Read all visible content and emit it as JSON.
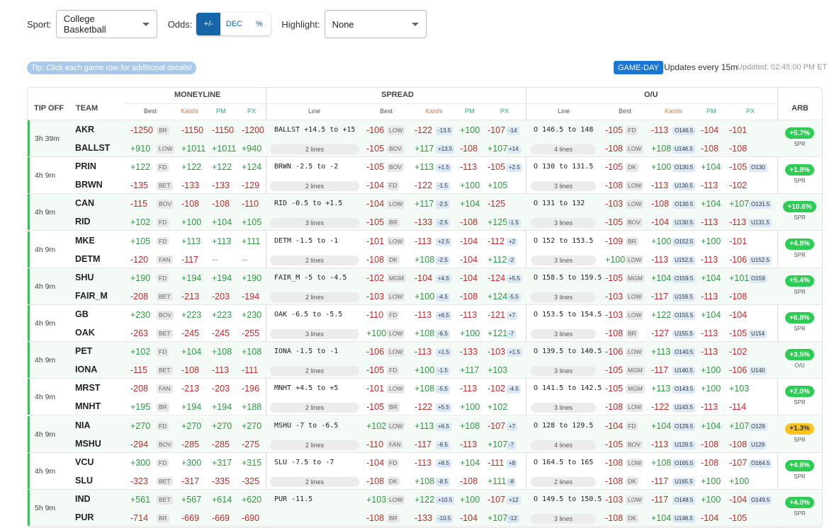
{
  "controls": {
    "sport_label": "Sport:",
    "sport_value": "College Basketball",
    "odds_label": "Odds:",
    "odds_options": [
      "+/-",
      "DEC",
      "%"
    ],
    "highlight_label": "Highlight:",
    "highlight_value": "None"
  },
  "tip": "Tip: Click each game row for additional details!",
  "status": {
    "badge": "GAME-DAY",
    "updates": "Updates every 15m",
    "updated": "Updated: 02:45:00 PM ET"
  },
  "colors": {
    "accent": "#1565a8",
    "positive": "#2a9a3e",
    "negative": "#c62828",
    "arb_green": "#2ecc55",
    "arb_yellow": "#f8c421"
  },
  "header": {
    "tipoff": "TIP OFF",
    "team": "TEAM",
    "moneyline": "MONEYLINE",
    "spread": "SPREAD",
    "ou": "O/U",
    "arb": "ARB",
    "ml_sub": [
      "Best",
      "Kalshi",
      "PM",
      "PX"
    ],
    "spread_sub": [
      "Line",
      "Best",
      "Kalshi",
      "PM",
      "PX"
    ],
    "ou_sub": [
      "Line",
      "Best",
      "Kalshi",
      "PM",
      "PX"
    ]
  },
  "games": [
    {
      "time": "3h 39m",
      "arb": "+5.7%",
      "arb_type": "SPR",
      "arb_color": "green",
      "rows": [
        {
          "team": "AKR",
          "ml": [
            "-1250",
            "BR",
            "-1150",
            "-1150",
            "-1200"
          ],
          "sp_line": "BALLST +14.5 to +15",
          "sp": [
            "-106",
            "LOW",
            "-122",
            "-13.5",
            "+100",
            "-107",
            "-14"
          ],
          "ou_line": "O 146.5 to 148",
          "ou": [
            "-105",
            "FD",
            "-113",
            "O146.5",
            "-104",
            "-101",
            ""
          ]
        },
        {
          "team": "BALLST",
          "ml": [
            "+910",
            "LOW",
            "+1011",
            "+1011",
            "+940"
          ],
          "sp_line": "2 lines",
          "sp": [
            "-105",
            "BOV",
            "+117",
            "+13.5",
            "-108",
            "+107",
            "+14"
          ],
          "ou_line": "4 lines",
          "ou": [
            "-108",
            "LOW",
            "+108",
            "U146.5",
            "-108",
            "-108",
            ""
          ]
        }
      ]
    },
    {
      "time": "4h 9m",
      "arb": "+1.8%",
      "arb_type": "SPR",
      "arb_color": "green",
      "rows": [
        {
          "team": "PRIN",
          "ml": [
            "+122",
            "FD",
            "+122",
            "+122",
            "+124"
          ],
          "sp_line": "BRWN -2.5 to -2",
          "sp": [
            "-105",
            "BOV",
            "+113",
            "+1.5",
            "-113",
            "-105",
            "+2.5"
          ],
          "ou_line": "O 130 to 131.5",
          "ou": [
            "-105",
            "DK",
            "+100",
            "O130.5",
            "+104",
            "-105",
            "O130"
          ]
        },
        {
          "team": "BRWN",
          "ml": [
            "-135",
            "BET",
            "-133",
            "-133",
            "-129"
          ],
          "sp_line": "2 lines",
          "sp": [
            "-104",
            "FD",
            "-122",
            "-1.5",
            "+100",
            "+105",
            ""
          ],
          "ou_line": "3 lines",
          "ou": [
            "-108",
            "LOW",
            "-113",
            "U130.5",
            "-113",
            "-102",
            ""
          ]
        }
      ]
    },
    {
      "time": "4h 9m",
      "arb": "+10.6%",
      "arb_type": "SPR",
      "arb_color": "green",
      "rows": [
        {
          "team": "CAN",
          "ml": [
            "-115",
            "BOV",
            "-108",
            "-108",
            "-110"
          ],
          "sp_line": "RID -0.5 to +1.5",
          "sp": [
            "-104",
            "LOW",
            "+117",
            "-2.5",
            "+104",
            "-125",
            ""
          ],
          "ou_line": "O 131 to 132",
          "ou": [
            "-103",
            "LOW",
            "-108",
            "O130.5",
            "+104",
            "+107",
            "O131.5"
          ]
        },
        {
          "team": "RID",
          "ml": [
            "+102",
            "FD",
            "+100",
            "+104",
            "+105"
          ],
          "sp_line": "3 lines",
          "sp": [
            "-105",
            "BR",
            "-133",
            "-2.5",
            "-108",
            "+125",
            "-1.5"
          ],
          "ou_line": "3 lines",
          "ou": [
            "-105",
            "BOV",
            "-104",
            "U130.5",
            "-113",
            "-113",
            "U131.5"
          ]
        }
      ]
    },
    {
      "time": "4h 9m",
      "arb": "+4.8%",
      "arb_type": "SPR",
      "arb_color": "green",
      "rows": [
        {
          "team": "MKE",
          "ml": [
            "+105",
            "FD",
            "+113",
            "+113",
            "+111"
          ],
          "sp_line": "DETM -1.5 to -1",
          "sp": [
            "-101",
            "LOW",
            "-113",
            "+2.5",
            "-104",
            "-112",
            "+2"
          ],
          "ou_line": "O 152 to 153.5",
          "ou": [
            "-109",
            "BR",
            "+100",
            "O152.5",
            "+100",
            "-101",
            ""
          ]
        },
        {
          "team": "DETM",
          "ml": [
            "-120",
            "FAN",
            "-117",
            "--",
            "--"
          ],
          "sp_line": "2 lines",
          "sp": [
            "-108",
            "DK",
            "+108",
            "-2.5",
            "-104",
            "+112",
            "-2"
          ],
          "ou_line": "3 lines",
          "ou": [
            "+100",
            "LOW",
            "-113",
            "U152.5",
            "-113",
            "-106",
            "U152.5"
          ]
        }
      ]
    },
    {
      "time": "4h 9m",
      "arb": "+5.4%",
      "arb_type": "SPR",
      "arb_color": "green",
      "rows": [
        {
          "team": "SHU",
          "ml": [
            "+190",
            "FD",
            "+194",
            "+194",
            "+190"
          ],
          "sp_line": "FAIR_M -5 to -4.5",
          "sp": [
            "-102",
            "MGM",
            "-104",
            "+4.5",
            "-104",
            "-124",
            "+5.5"
          ],
          "ou_line": "O 158.5 to 159.5",
          "ou": [
            "-105",
            "MGM",
            "+104",
            "O159.5",
            "+104",
            "+101",
            "O159"
          ]
        },
        {
          "team": "FAIR_M",
          "ml": [
            "-208",
            "BET",
            "-213",
            "-203",
            "-194"
          ],
          "sp_line": "2 lines",
          "sp": [
            "-103",
            "LOW",
            "+100",
            "-4.5",
            "-108",
            "+124",
            "-5.5"
          ],
          "ou_line": "3 lines",
          "ou": [
            "-103",
            "LOW",
            "-117",
            "U159.5",
            "-113",
            "-108",
            ""
          ]
        }
      ]
    },
    {
      "time": "4h 9m",
      "arb": "+6.8%",
      "arb_type": "SPR",
      "arb_color": "green",
      "rows": [
        {
          "team": "GB",
          "ml": [
            "+230",
            "BOV",
            "+223",
            "+223",
            "+230"
          ],
          "sp_line": "OAK -6.5 to -5.5",
          "sp": [
            "-110",
            "FD",
            "-113",
            "+6.5",
            "-113",
            "-121",
            "+7"
          ],
          "ou_line": "O 153.5 to 154.5",
          "ou": [
            "-103",
            "LOW",
            "+122",
            "O155.5",
            "+104",
            "-104",
            ""
          ]
        },
        {
          "team": "OAK",
          "ml": [
            "-263",
            "BET",
            "-245",
            "-245",
            "-255"
          ],
          "sp_line": "3 lines",
          "sp": [
            "+100",
            "LOW",
            "+108",
            "-6.5",
            "+100",
            "+121",
            "-7"
          ],
          "ou_line": "3 lines",
          "ou": [
            "-108",
            "BR",
            "-127",
            "U155.5",
            "-113",
            "-105",
            "U154"
          ]
        }
      ]
    },
    {
      "time": "4h 9m",
      "arb": "+3.5%",
      "arb_type": "O/U",
      "arb_color": "green",
      "rows": [
        {
          "team": "PET",
          "ml": [
            "+102",
            "FD",
            "+104",
            "+108",
            "+108"
          ],
          "sp_line": "IONA -1.5 to -1",
          "sp": [
            "-106",
            "LOW",
            "-113",
            "+1.5",
            "-133",
            "-103",
            "+1.5"
          ],
          "ou_line": "O 139.5 to 140.5",
          "ou": [
            "-106",
            "LOW",
            "+113",
            "O140.5",
            "-113",
            "-102",
            ""
          ]
        },
        {
          "team": "IONA",
          "ml": [
            "-115",
            "BET",
            "-108",
            "-113",
            "-111"
          ],
          "sp_line": "2 lines",
          "sp": [
            "-105",
            "FD",
            "+100",
            "-1.5",
            "+117",
            "+103",
            ""
          ],
          "ou_line": "3 lines",
          "ou": [
            "-105",
            "MGM",
            "-117",
            "U140.5",
            "+100",
            "-106",
            "U140"
          ]
        }
      ]
    },
    {
      "time": "4h 9m",
      "arb": "+2.0%",
      "arb_type": "SPR",
      "arb_color": "green",
      "rows": [
        {
          "team": "MRST",
          "ml": [
            "-208",
            "FAN",
            "-213",
            "-203",
            "-196"
          ],
          "sp_line": "MNHT +4.5 to +5",
          "sp": [
            "-101",
            "LOW",
            "+108",
            "-5.5",
            "-113",
            "-102",
            "-4.5"
          ],
          "ou_line": "O 141.5 to 142.5",
          "ou": [
            "-105",
            "MGM",
            "+113",
            "O143.5",
            "+100",
            "+103",
            ""
          ]
        },
        {
          "team": "MNHT",
          "ml": [
            "+195",
            "BR",
            "+194",
            "+194",
            "+188"
          ],
          "sp_line": "2 lines",
          "sp": [
            "-105",
            "BR",
            "-122",
            "+5.5",
            "+100",
            "+102",
            ""
          ],
          "ou_line": "3 lines",
          "ou": [
            "-108",
            "LOW",
            "-122",
            "U143.5",
            "-113",
            "-114",
            ""
          ]
        }
      ]
    },
    {
      "time": "4h 9m",
      "arb": "+1.3%",
      "arb_type": "SPR",
      "arb_color": "yellow",
      "rows": [
        {
          "team": "NIA",
          "ml": [
            "+270",
            "FD",
            "+270",
            "+270",
            "+270"
          ],
          "sp_line": "MSHU -7 to -6.5",
          "sp": [
            "+102",
            "LOW",
            "+113",
            "+6.5",
            "+108",
            "-107",
            "+7"
          ],
          "ou_line": "O 128 to 129.5",
          "ou": [
            "-104",
            "FD",
            "+104",
            "O129.5",
            "+104",
            "+107",
            "O129"
          ]
        },
        {
          "team": "MSHU",
          "ml": [
            "-294",
            "BOV",
            "-285",
            "-285",
            "-275"
          ],
          "sp_line": "2 lines",
          "sp": [
            "-110",
            "FAN",
            "-117",
            "-6.5",
            "-113",
            "+107",
            "-7"
          ],
          "ou_line": "4 lines",
          "ou": [
            "-105",
            "BOV",
            "-113",
            "U129.5",
            "-108",
            "-108",
            "U129"
          ]
        }
      ]
    },
    {
      "time": "4h 9m",
      "arb": "+4.6%",
      "arb_type": "SPR",
      "arb_color": "green",
      "rows": [
        {
          "team": "VCU",
          "ml": [
            "+300",
            "FD",
            "+300",
            "+317",
            "+315"
          ],
          "sp_line": "SLU -7.5 to -7",
          "sp": [
            "-104",
            "FD",
            "-113",
            "+8.5",
            "+104",
            "-111",
            "+8"
          ],
          "ou_line": "O 164.5 to 165",
          "ou": [
            "-108",
            "LOW",
            "+108",
            "O165.5",
            "-108",
            "-107",
            "O164.5"
          ]
        },
        {
          "team": "SLU",
          "ml": [
            "-323",
            "BET",
            "-317",
            "-335",
            "-325"
          ],
          "sp_line": "2 lines",
          "sp": [
            "-108",
            "DK",
            "+108",
            "-8.5",
            "-108",
            "+111",
            "-8"
          ],
          "ou_line": "2 lines",
          "ou": [
            "-108",
            "DK",
            "-117",
            "U165.5",
            "+100",
            "+100",
            ""
          ]
        }
      ]
    },
    {
      "time": "5h 9m",
      "arb": "+4.0%",
      "arb_type": "SPR",
      "arb_color": "green",
      "rows": [
        {
          "team": "IND",
          "ml": [
            "+561",
            "BET",
            "+567",
            "+614",
            "+620"
          ],
          "sp_line": "PUR -11.5",
          "sp": [
            "+103",
            "LOW",
            "+122",
            "+10.5",
            "+100",
            "-107",
            "+12"
          ],
          "ou_line": "O 149.5 to 150.5",
          "ou": [
            "-103",
            "LOW",
            "-117",
            "O148.5",
            "+100",
            "-104",
            "O149.5"
          ]
        },
        {
          "team": "PUR",
          "ml": [
            "-714",
            "BR",
            "-669",
            "-669",
            "-690"
          ],
          "sp_line": "",
          "sp": [
            "-108",
            "BR",
            "-133",
            "-10.5",
            "-104",
            "+107",
            "-12"
          ],
          "ou_line": "3 lines",
          "ou": [
            "-108",
            "DK",
            "+104",
            "U148.5",
            "-104",
            "-105",
            ""
          ]
        }
      ]
    }
  ]
}
